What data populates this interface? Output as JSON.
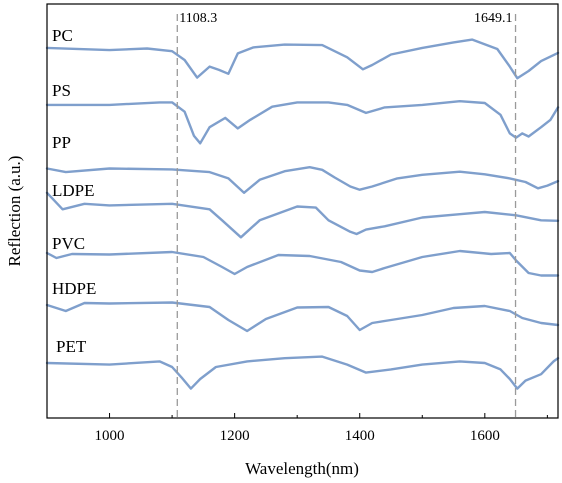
{
  "chart_data": {
    "type": "line",
    "xlabel": "Wavelength(nm)",
    "ylabel": "Reflection (a.u.)",
    "xlim": [
      900,
      1717
    ],
    "x_ticks": [
      1000,
      1200,
      1400,
      1600
    ],
    "y_ticks": "none (arbitrary units, curves vertically offset)",
    "grid": false,
    "reference_lines": [
      {
        "x": 1108.3,
        "label": "1108.3"
      },
      {
        "x": 1649.1,
        "label": "1649.1"
      }
    ],
    "series": [
      {
        "name": "PC",
        "points": [
          [
            900,
            18
          ],
          [
            1000,
            22
          ],
          [
            1060,
            19
          ],
          [
            1100,
            24
          ],
          [
            1120,
            40
          ],
          [
            1140,
            72
          ],
          [
            1160,
            52
          ],
          [
            1175,
            58
          ],
          [
            1190,
            65
          ],
          [
            1205,
            28
          ],
          [
            1230,
            17
          ],
          [
            1280,
            12
          ],
          [
            1340,
            13
          ],
          [
            1380,
            35
          ],
          [
            1405,
            57
          ],
          [
            1420,
            49
          ],
          [
            1450,
            30
          ],
          [
            1500,
            18
          ],
          [
            1550,
            8
          ],
          [
            1580,
            3
          ],
          [
            1620,
            20
          ],
          [
            1640,
            52
          ],
          [
            1652,
            73
          ],
          [
            1670,
            60
          ],
          [
            1690,
            42
          ],
          [
            1717,
            27
          ]
        ]
      },
      {
        "name": "PS",
        "points": [
          [
            900,
            24
          ],
          [
            1000,
            24
          ],
          [
            1080,
            20
          ],
          [
            1100,
            20
          ],
          [
            1120,
            35
          ],
          [
            1135,
            74
          ],
          [
            1145,
            86
          ],
          [
            1160,
            60
          ],
          [
            1185,
            45
          ],
          [
            1205,
            62
          ],
          [
            1225,
            48
          ],
          [
            1260,
            27
          ],
          [
            1300,
            20
          ],
          [
            1350,
            20
          ],
          [
            1380,
            24
          ],
          [
            1410,
            37
          ],
          [
            1440,
            28
          ],
          [
            1500,
            24
          ],
          [
            1560,
            18
          ],
          [
            1600,
            21
          ],
          [
            1625,
            40
          ],
          [
            1640,
            70
          ],
          [
            1650,
            77
          ],
          [
            1660,
            70
          ],
          [
            1670,
            75
          ],
          [
            1690,
            60
          ],
          [
            1705,
            48
          ],
          [
            1717,
            28
          ]
        ]
      },
      {
        "name": "PP",
        "points": [
          [
            900,
            30
          ],
          [
            930,
            38
          ],
          [
            1000,
            30
          ],
          [
            1100,
            32
          ],
          [
            1160,
            38
          ],
          [
            1190,
            52
          ],
          [
            1215,
            84
          ],
          [
            1240,
            55
          ],
          [
            1280,
            36
          ],
          [
            1320,
            27
          ],
          [
            1340,
            33
          ],
          [
            1360,
            50
          ],
          [
            1385,
            70
          ],
          [
            1400,
            77
          ],
          [
            1420,
            70
          ],
          [
            1460,
            52
          ],
          [
            1500,
            44
          ],
          [
            1560,
            37
          ],
          [
            1600,
            43
          ],
          [
            1640,
            52
          ],
          [
            1665,
            60
          ],
          [
            1685,
            74
          ],
          [
            1700,
            68
          ],
          [
            1717,
            58
          ]
        ]
      },
      {
        "name": "LDPE",
        "points": [
          [
            900,
            5
          ],
          [
            925,
            35
          ],
          [
            960,
            25
          ],
          [
            1000,
            28
          ],
          [
            1100,
            25
          ],
          [
            1160,
            35
          ],
          [
            1180,
            55
          ],
          [
            1210,
            86
          ],
          [
            1240,
            55
          ],
          [
            1300,
            30
          ],
          [
            1330,
            32
          ],
          [
            1350,
            55
          ],
          [
            1385,
            76
          ],
          [
            1395,
            80
          ],
          [
            1410,
            72
          ],
          [
            1440,
            66
          ],
          [
            1500,
            50
          ],
          [
            1560,
            44
          ],
          [
            1600,
            40
          ],
          [
            1650,
            46
          ],
          [
            1690,
            55
          ],
          [
            1717,
            56
          ]
        ]
      },
      {
        "name": "PVC",
        "points": [
          [
            900,
            10
          ],
          [
            915,
            20
          ],
          [
            940,
            12
          ],
          [
            1000,
            13
          ],
          [
            1100,
            8
          ],
          [
            1150,
            18
          ],
          [
            1180,
            38
          ],
          [
            1200,
            52
          ],
          [
            1220,
            38
          ],
          [
            1270,
            14
          ],
          [
            1320,
            16
          ],
          [
            1370,
            28
          ],
          [
            1400,
            45
          ],
          [
            1420,
            48
          ],
          [
            1440,
            40
          ],
          [
            1500,
            18
          ],
          [
            1560,
            6
          ],
          [
            1610,
            12
          ],
          [
            1640,
            10
          ],
          [
            1650,
            25
          ],
          [
            1670,
            50
          ],
          [
            1690,
            55
          ],
          [
            1717,
            55
          ]
        ]
      },
      {
        "name": "HDPE",
        "points": [
          [
            900,
            30
          ],
          [
            930,
            42
          ],
          [
            960,
            26
          ],
          [
            1000,
            27
          ],
          [
            1100,
            25
          ],
          [
            1160,
            34
          ],
          [
            1190,
            60
          ],
          [
            1220,
            82
          ],
          [
            1250,
            58
          ],
          [
            1300,
            35
          ],
          [
            1350,
            34
          ],
          [
            1380,
            52
          ],
          [
            1400,
            80
          ],
          [
            1420,
            66
          ],
          [
            1450,
            60
          ],
          [
            1500,
            50
          ],
          [
            1550,
            36
          ],
          [
            1600,
            32
          ],
          [
            1640,
            42
          ],
          [
            1660,
            56
          ],
          [
            1690,
            66
          ],
          [
            1717,
            70
          ]
        ]
      },
      {
        "name": "PET",
        "points": [
          [
            900,
            10
          ],
          [
            1000,
            12
          ],
          [
            1080,
            8
          ],
          [
            1100,
            15
          ],
          [
            1115,
            28
          ],
          [
            1130,
            42
          ],
          [
            1145,
            30
          ],
          [
            1170,
            15
          ],
          [
            1220,
            8
          ],
          [
            1280,
            4
          ],
          [
            1340,
            2
          ],
          [
            1380,
            12
          ],
          [
            1410,
            22
          ],
          [
            1450,
            18
          ],
          [
            1500,
            12
          ],
          [
            1560,
            8
          ],
          [
            1600,
            10
          ],
          [
            1625,
            18
          ],
          [
            1640,
            30
          ],
          [
            1652,
            42
          ],
          [
            1665,
            32
          ],
          [
            1690,
            24
          ],
          [
            1710,
            8
          ],
          [
            1717,
            4
          ]
        ]
      }
    ]
  }
}
